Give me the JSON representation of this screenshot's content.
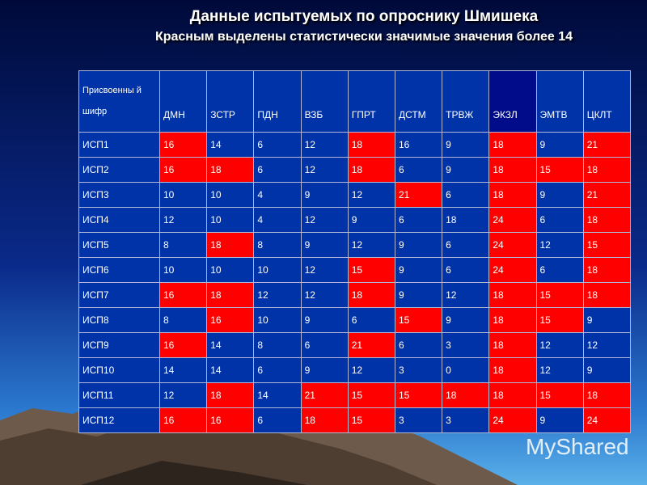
{
  "header": {
    "title": "Данные испытуемых по опроснику Шмишека",
    "subtitle": "Красным выделены статистически значимые значения более 14"
  },
  "table": {
    "corner": "Присвоенны й шифр",
    "columns": [
      "ДМН",
      "ЗСТР",
      "ПДН",
      "ВЗБ",
      "ГПРТ",
      "ДСТМ",
      "ТРВЖ",
      "ЭКЗЛ",
      "ЭМТВ",
      "ЦКЛТ"
    ],
    "rows": [
      {
        "code": "ИСП1",
        "values": [
          16,
          14,
          6,
          12,
          18,
          16,
          9,
          18,
          9,
          21
        ],
        "red": [
          true,
          false,
          false,
          false,
          true,
          false,
          false,
          true,
          false,
          true
        ]
      },
      {
        "code": "ИСП2",
        "values": [
          16,
          18,
          6,
          12,
          18,
          6,
          9,
          18,
          15,
          18
        ],
        "red": [
          true,
          true,
          false,
          false,
          true,
          false,
          false,
          true,
          true,
          true
        ]
      },
      {
        "code": "ИСП3",
        "values": [
          10,
          10,
          4,
          9,
          12,
          21,
          6,
          18,
          9,
          21
        ],
        "red": [
          false,
          false,
          false,
          false,
          false,
          true,
          false,
          true,
          false,
          true
        ]
      },
      {
        "code": "ИСП4",
        "values": [
          12,
          10,
          4,
          12,
          9,
          6,
          18,
          24,
          6,
          18
        ],
        "red": [
          false,
          false,
          false,
          false,
          false,
          false,
          false,
          true,
          false,
          true
        ]
      },
      {
        "code": "ИСП5",
        "values": [
          8,
          18,
          8,
          9,
          12,
          9,
          6,
          24,
          12,
          15
        ],
        "red": [
          false,
          true,
          false,
          false,
          false,
          false,
          false,
          true,
          false,
          true
        ]
      },
      {
        "code": "ИСП6",
        "values": [
          10,
          10,
          10,
          12,
          15,
          9,
          6,
          24,
          6,
          18
        ],
        "red": [
          false,
          false,
          false,
          false,
          true,
          false,
          false,
          true,
          false,
          true
        ]
      },
      {
        "code": "ИСП7",
        "values": [
          16,
          18,
          12,
          12,
          18,
          9,
          12,
          18,
          15,
          18
        ],
        "red": [
          true,
          true,
          false,
          false,
          true,
          false,
          false,
          true,
          true,
          true
        ]
      },
      {
        "code": "ИСП8",
        "values": [
          8,
          16,
          10,
          9,
          6,
          15,
          9,
          18,
          15,
          9
        ],
        "red": [
          false,
          true,
          false,
          false,
          false,
          true,
          false,
          true,
          true,
          false
        ]
      },
      {
        "code": "ИСП9",
        "values": [
          16,
          14,
          8,
          6,
          21,
          6,
          3,
          18,
          12,
          12
        ],
        "red": [
          true,
          false,
          false,
          false,
          true,
          false,
          false,
          true,
          false,
          false
        ]
      },
      {
        "code": "ИСП10",
        "values": [
          14,
          14,
          6,
          9,
          12,
          3,
          0,
          18,
          12,
          9
        ],
        "red": [
          false,
          false,
          false,
          false,
          false,
          false,
          false,
          true,
          false,
          false
        ]
      },
      {
        "code": "ИСП11",
        "values": [
          12,
          18,
          14,
          21,
          15,
          15,
          18,
          18,
          15,
          18
        ],
        "red": [
          false,
          true,
          false,
          true,
          true,
          true,
          true,
          true,
          true,
          true
        ]
      },
      {
        "code": "ИСП12",
        "values": [
          16,
          16,
          6,
          18,
          15,
          3,
          3,
          24,
          9,
          24
        ],
        "red": [
          true,
          true,
          false,
          true,
          true,
          false,
          false,
          true,
          false,
          true
        ]
      }
    ]
  },
  "watermark": "MyShared"
}
